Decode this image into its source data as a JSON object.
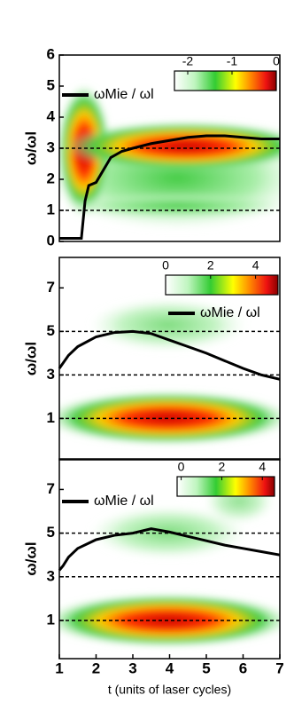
{
  "chart_data": [
    {
      "type": "line",
      "ylabel": "ω/ωl",
      "xlim": [
        1,
        7
      ],
      "ylim": [
        0,
        6
      ],
      "yticks": [
        0,
        1,
        2,
        3,
        4,
        5,
        6
      ],
      "hlines": [
        1,
        3
      ],
      "colorbar": {
        "lim": [
          -2.3,
          0
        ],
        "ticks": [
          -2,
          -1,
          0
        ]
      },
      "series": [
        {
          "name": "ωMie / ωl",
          "color": "#000000",
          "x": [
            1,
            1.6,
            1.7,
            1.8,
            2,
            2.2,
            2.4,
            2.7,
            3,
            3.5,
            4,
            4.5,
            5,
            5.5,
            6,
            6.5,
            7
          ],
          "values": [
            0.1,
            0.1,
            1.3,
            1.8,
            1.9,
            2.3,
            2.7,
            2.9,
            3.0,
            3.15,
            3.25,
            3.35,
            3.4,
            3.4,
            3.35,
            3.3,
            3.3
          ]
        }
      ]
    },
    {
      "type": "line",
      "ylabel": "ω/ωl",
      "xlim": [
        1,
        7
      ],
      "ylim": [
        -0.9,
        8.4
      ],
      "yticks": [
        1,
        3,
        5,
        7
      ],
      "hlines": [
        1,
        3,
        5
      ],
      "colorbar": {
        "lim": [
          0,
          5
        ],
        "ticks": [
          0,
          2,
          4
        ]
      },
      "series": [
        {
          "name": "ωMie / ωl",
          "color": "#000000",
          "x": [
            1,
            1.25,
            1.5,
            2,
            2.5,
            3,
            3.5,
            4,
            4.5,
            5,
            5.5,
            6,
            6.5,
            7
          ],
          "values": [
            3.3,
            3.9,
            4.3,
            4.75,
            4.95,
            5.0,
            4.9,
            4.6,
            4.3,
            4.0,
            3.65,
            3.3,
            3.0,
            2.8
          ]
        }
      ]
    },
    {
      "type": "line",
      "ylabel": "ω/ωl",
      "xlim": [
        1,
        7
      ],
      "ylim": [
        -0.75,
        8.4
      ],
      "yticks": [
        1,
        3,
        5,
        7
      ],
      "hlines": [
        1,
        3,
        5
      ],
      "colorbar": {
        "lim": [
          -0.2,
          4.6
        ],
        "ticks": [
          0,
          2,
          4
        ]
      },
      "xticks": [
        1,
        2,
        3,
        4,
        5,
        6,
        7
      ],
      "xlabel": "t (units of laser cycles)",
      "series": [
        {
          "name": "ωMie / ωl",
          "color": "#000000",
          "x": [
            1,
            1.1,
            1.25,
            1.5,
            2,
            2.5,
            3,
            3.5,
            4,
            4.5,
            5,
            5.5,
            6,
            6.5,
            7
          ],
          "values": [
            3.3,
            3.5,
            3.9,
            4.3,
            4.7,
            4.9,
            5.0,
            5.2,
            5.05,
            4.85,
            4.65,
            4.45,
            4.3,
            4.15,
            4.0
          ]
        }
      ]
    }
  ]
}
